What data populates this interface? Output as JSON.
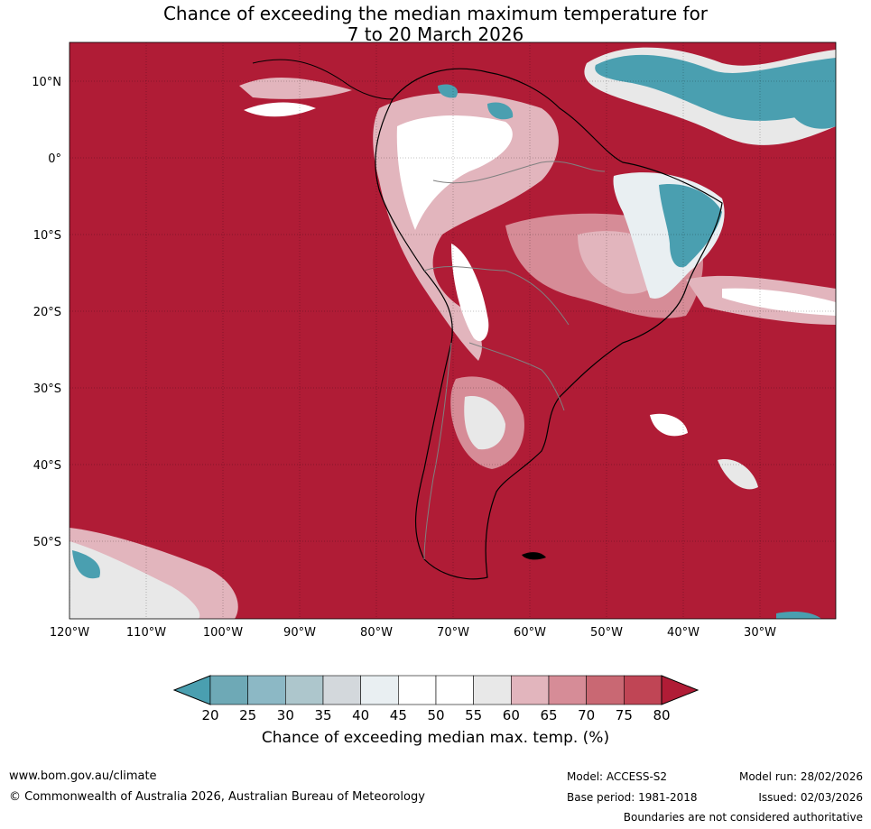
{
  "title": {
    "line1": "Chance of exceeding the median maximum temperature for",
    "line2": "7 to 20 March 2026"
  },
  "axes": {
    "lat_labels": [
      "10°N",
      "0°",
      "10°S",
      "20°S",
      "30°S",
      "40°S",
      "50°S"
    ],
    "lon_labels": [
      "120°W",
      "110°W",
      "100°W",
      "90°W",
      "80°W",
      "70°W",
      "60°W",
      "50°W",
      "40°W",
      "30°W"
    ]
  },
  "colorbar": {
    "ticks": [
      "20",
      "25",
      "30",
      "35",
      "40",
      "45",
      "50",
      "55",
      "60",
      "65",
      "70",
      "75",
      "80"
    ],
    "colors": [
      "#4a9fb0",
      "#6ea9b6",
      "#8cb8c5",
      "#adc6cc",
      "#d3d8dc",
      "#e9eff2",
      "#ffffff",
      "#ffffff",
      "#e8e8e8",
      "#e2b5bd",
      "#d68c97",
      "#c96873",
      "#c04555",
      "#b01c36"
    ],
    "label": "Chance of exceeding median max. temp. (%)"
  },
  "colors": {
    "warm": "#b01c36",
    "cool": "#4a9fb0"
  },
  "footer": {
    "url": "www.bom.gov.au/climate",
    "copyright": "© Commonwealth of Australia 2026, Australian Bureau of Meteorology",
    "model": "Model: ACCESS-S2",
    "base_period": "Base period: 1981-2018",
    "model_run": "Model run: 28/02/2026",
    "issued": "Issued: 02/03/2026",
    "disclaimer": "Boundaries are not considered authoritative"
  }
}
